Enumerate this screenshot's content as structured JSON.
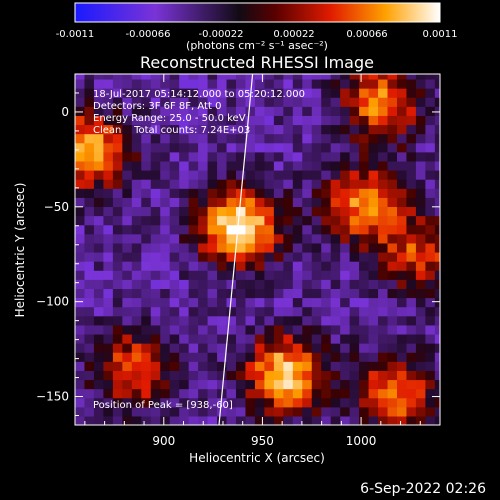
{
  "colorbar": {
    "tick_labels": [
      "-0.0011",
      "-0.00066",
      "-0.00022",
      "0.00022",
      "0.00066",
      "0.0011"
    ],
    "unit": "(photons cm⁻² s⁻¹ asec⁻²)",
    "range": [
      -0.0011,
      0.0011
    ],
    "colormap": "blue-purple-black-red-yellow-white"
  },
  "chart_data": {
    "type": "heatmap",
    "title": "Reconstructed RHESSI Image",
    "xlabel": "Heliocentric X (arcsec)",
    "ylabel": "Heliocentric Y (arcsec)",
    "xlim": [
      855,
      1040
    ],
    "ylim": [
      -165,
      20
    ],
    "x_ticks": [
      900,
      950,
      1000
    ],
    "y_ticks": [
      0,
      -50,
      -100,
      -150
    ],
    "peaks": [
      {
        "x": 938,
        "y": -60,
        "value": 0.0011
      },
      {
        "x": 962,
        "y": -138,
        "value": 0.0009
      },
      {
        "x": 862,
        "y": -20,
        "value": 0.0008
      },
      {
        "x": 1002,
        "y": -48,
        "value": 0.0007
      },
      {
        "x": 1010,
        "y": 5,
        "value": 0.0006
      },
      {
        "x": 1017,
        "y": -148,
        "value": 0.0006
      },
      {
        "x": 885,
        "y": -135,
        "value": 0.0005
      },
      {
        "x": 1030,
        "y": -75,
        "value": 0.0004
      }
    ],
    "limb_line": {
      "points": [
        [
          945,
          20
        ],
        [
          928,
          -165
        ]
      ]
    },
    "annotations": {
      "time_range": "18-Jul-2017 05:14:12.000 to 05:20:12.000",
      "detectors": "Detectors: 3F 6F 8F, Att 0",
      "energy": "Energy Range: 25.0 - 50.0 keV",
      "method": "Clean    Total counts: 7.24E+03",
      "peak": "Position of Peak = [938,-60]"
    }
  },
  "footer": {
    "date": "6-Sep-2022 02:26"
  }
}
